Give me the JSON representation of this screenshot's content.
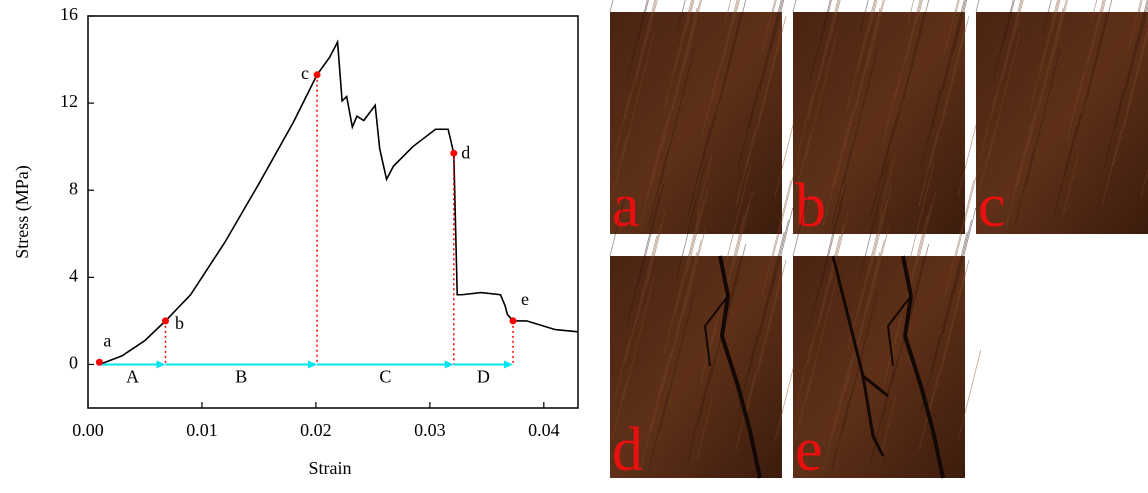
{
  "chart_data": {
    "type": "line",
    "x_label": "Strain",
    "y_label": "Stress (MPa)",
    "xlim": [
      0,
      0.043
    ],
    "ylim": [
      -2,
      16
    ],
    "xticks": [
      {
        "value": 0,
        "label": "0.00"
      },
      0.01,
      0.02,
      0.03,
      0.04
    ],
    "yticks": [
      0,
      4,
      8,
      12,
      16
    ],
    "series": [
      {
        "color": "#000000",
        "x": [
          0.001,
          0.003,
          0.005,
          0.0068,
          0.009,
          0.012,
          0.015,
          0.018,
          0.0201,
          0.0212,
          0.0219,
          0.0223,
          0.0227,
          0.0232,
          0.0236,
          0.0242,
          0.0252,
          0.0256,
          0.0262,
          0.0268,
          0.0285,
          0.0305,
          0.0316,
          0.0321,
          0.0324,
          0.0328,
          0.0345,
          0.0362,
          0.0366,
          0.0368,
          0.0373,
          0.0385,
          0.041,
          0.043
        ],
        "values": [
          0,
          0.4,
          1.1,
          2.0,
          3.2,
          5.6,
          8.3,
          11.1,
          13.3,
          14.1,
          14.8,
          12.1,
          12.3,
          10.9,
          11.4,
          11.2,
          11.9,
          9.9,
          8.5,
          9.1,
          10.0,
          10.8,
          10.8,
          9.7,
          3.2,
          3.2,
          3.3,
          3.2,
          2.7,
          2.3,
          2.0,
          2.0,
          1.6,
          1.5
        ]
      }
    ],
    "points": {
      "color": "#ff0000",
      "labels": [
        "a",
        "b",
        "c",
        "d",
        "e"
      ],
      "x": [
        0.001,
        0.0068,
        0.0201,
        0.0321,
        0.0373
      ],
      "values": [
        0.1,
        2.0,
        13.3,
        9.7,
        2.0
      ]
    },
    "stages": {
      "color": "#00e5ee",
      "labels": [
        "A",
        "B",
        "C",
        "D"
      ]
    }
  },
  "photos": [
    {
      "label": "a"
    },
    {
      "label": "b"
    },
    {
      "label": "c"
    },
    {
      "label": "d"
    },
    {
      "label": "e"
    }
  ]
}
